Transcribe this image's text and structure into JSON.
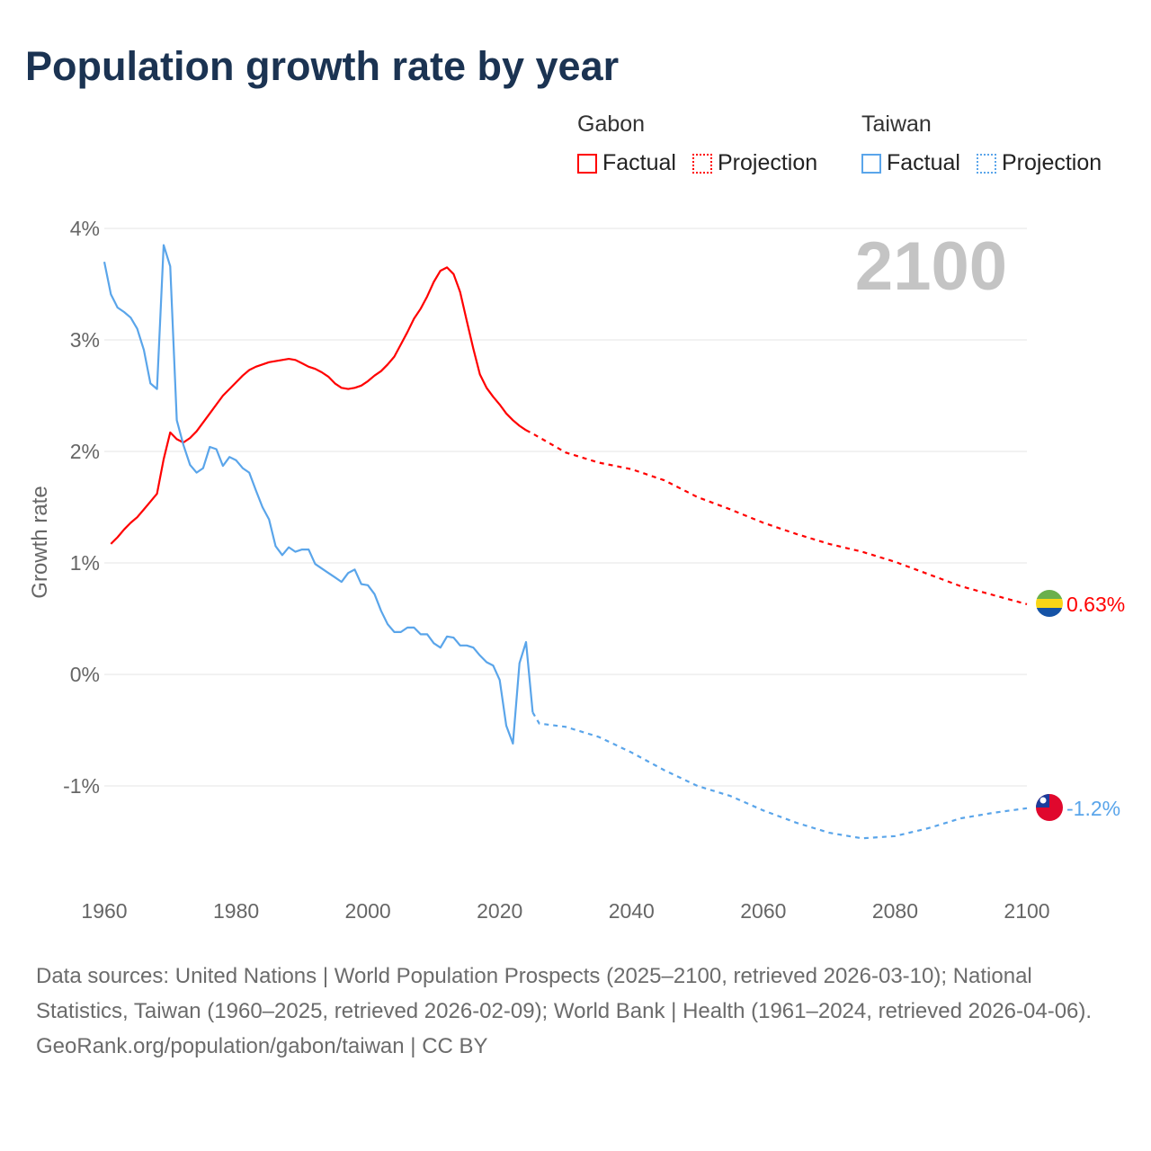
{
  "title": "Population growth rate by year",
  "legend": {
    "groups": [
      {
        "country": "Gabon",
        "color": "#ff0000",
        "factual": "Factual",
        "projection": "Projection"
      },
      {
        "country": "Taiwan",
        "color": "#5aa5ea",
        "factual": "Factual",
        "projection": "Projection"
      }
    ]
  },
  "year_badge": "2100",
  "footer": {
    "sources": "Data sources: United Nations | World Population Prospects (2025–2100, retrieved 2026-03-10); National Statistics, Taiwan (1960–2025, retrieved 2026-02-09); World Bank | Health (1961–2024, retrieved 2026-04-06).",
    "credit": "GeoRank.org/population/gabon/taiwan | CC BY"
  },
  "chart_data": {
    "type": "line",
    "title": "Population growth rate by year",
    "xlabel": "",
    "ylabel": "Growth rate",
    "xlim": [
      1960,
      2100
    ],
    "ylim": [
      -1.9,
      4
    ],
    "xticks": [
      1960,
      1980,
      2000,
      2020,
      2040,
      2060,
      2080,
      2100
    ],
    "xtick_labels": [
      "1960",
      "1980",
      "2000",
      "2020",
      "2040",
      "2060",
      "2080",
      "2100"
    ],
    "yticks": [
      4,
      3,
      2,
      1,
      0,
      -1
    ],
    "ytick_labels": [
      "4%",
      "3%",
      "2%",
      "1%",
      "0%",
      "-1%"
    ],
    "grid": true,
    "legend_position": "top-right",
    "series": [
      {
        "name": "Gabon",
        "color": "#ff0000",
        "end_label": "0.63%",
        "flag": "gabon-flag",
        "factual": {
          "x": [
            1961,
            1962,
            1963,
            1964,
            1965,
            1966,
            1967,
            1968,
            1969,
            1970,
            1971,
            1972,
            1973,
            1974,
            1975,
            1976,
            1977,
            1978,
            1979,
            1980,
            1981,
            1982,
            1983,
            1984,
            1985,
            1986,
            1987,
            1988,
            1989,
            1990,
            1991,
            1992,
            1993,
            1994,
            1995,
            1996,
            1997,
            1998,
            1999,
            2000,
            2001,
            2002,
            2003,
            2004,
            2005,
            2006,
            2007,
            2008,
            2009,
            2010,
            2011,
            2012,
            2013,
            2014,
            2015,
            2016,
            2017,
            2018,
            2019,
            2020,
            2021,
            2022,
            2023,
            2024
          ],
          "y": [
            1.17,
            1.23,
            1.3,
            1.36,
            1.41,
            1.48,
            1.55,
            1.62,
            1.93,
            2.17,
            2.11,
            2.08,
            2.12,
            2.18,
            2.26,
            2.34,
            2.42,
            2.5,
            2.56,
            2.62,
            2.68,
            2.73,
            2.76,
            2.78,
            2.8,
            2.81,
            2.82,
            2.83,
            2.82,
            2.79,
            2.76,
            2.74,
            2.71,
            2.67,
            2.61,
            2.57,
            2.56,
            2.57,
            2.59,
            2.63,
            2.68,
            2.72,
            2.78,
            2.85,
            2.96,
            3.07,
            3.19,
            3.28,
            3.39,
            3.52,
            3.62,
            3.65,
            3.59,
            3.43,
            3.17,
            2.92,
            2.69,
            2.57,
            2.49,
            2.42,
            2.34,
            2.28,
            2.23,
            2.19
          ]
        },
        "projection": {
          "x": [
            2024,
            2025,
            2030,
            2035,
            2040,
            2045,
            2050,
            2055,
            2060,
            2065,
            2070,
            2075,
            2080,
            2085,
            2090,
            2095,
            2100
          ],
          "y": [
            2.19,
            2.16,
            1.99,
            1.9,
            1.84,
            1.74,
            1.59,
            1.48,
            1.36,
            1.26,
            1.17,
            1.1,
            1.01,
            0.9,
            0.79,
            0.71,
            0.63
          ]
        }
      },
      {
        "name": "Taiwan",
        "color": "#5aa5ea",
        "end_label": "-1.2%",
        "flag": "taiwan-flag",
        "factual": {
          "x": [
            1960,
            1961,
            1962,
            1963,
            1964,
            1965,
            1966,
            1967,
            1968,
            1969,
            1970,
            1971,
            1972,
            1973,
            1974,
            1975,
            1976,
            1977,
            1978,
            1979,
            1980,
            1981,
            1982,
            1983,
            1984,
            1985,
            1986,
            1987,
            1988,
            1989,
            1990,
            1991,
            1992,
            1993,
            1994,
            1995,
            1996,
            1997,
            1998,
            1999,
            2000,
            2001,
            2002,
            2003,
            2004,
            2005,
            2006,
            2007,
            2008,
            2009,
            2010,
            2011,
            2012,
            2013,
            2014,
            2015,
            2016,
            2017,
            2018,
            2019,
            2020,
            2021,
            2022,
            2023,
            2024,
            2025
          ],
          "y": [
            3.7,
            3.41,
            3.29,
            3.25,
            3.2,
            3.1,
            2.91,
            2.61,
            2.56,
            3.85,
            3.66,
            2.28,
            2.06,
            1.88,
            1.81,
            1.85,
            2.04,
            2.02,
            1.87,
            1.95,
            1.92,
            1.85,
            1.81,
            1.65,
            1.5,
            1.39,
            1.15,
            1.07,
            1.14,
            1.1,
            1.12,
            1.12,
            0.99,
            0.95,
            0.91,
            0.87,
            0.83,
            0.91,
            0.94,
            0.81,
            0.8,
            0.72,
            0.57,
            0.45,
            0.38,
            0.38,
            0.42,
            0.42,
            0.36,
            0.36,
            0.28,
            0.24,
            0.34,
            0.33,
            0.26,
            0.26,
            0.24,
            0.17,
            0.11,
            0.08,
            -0.05,
            -0.46,
            -0.62,
            0.1,
            0.29,
            -0.34
          ]
        },
        "projection": {
          "x": [
            2025,
            2026,
            2030,
            2035,
            2040,
            2045,
            2050,
            2055,
            2060,
            2065,
            2070,
            2075,
            2080,
            2085,
            2090,
            2095,
            2100
          ],
          "y": [
            -0.34,
            -0.44,
            -0.47,
            -0.56,
            -0.7,
            -0.86,
            -1.0,
            -1.09,
            -1.22,
            -1.33,
            -1.42,
            -1.47,
            -1.45,
            -1.38,
            -1.29,
            -1.24,
            -1.2
          ]
        }
      }
    ]
  }
}
